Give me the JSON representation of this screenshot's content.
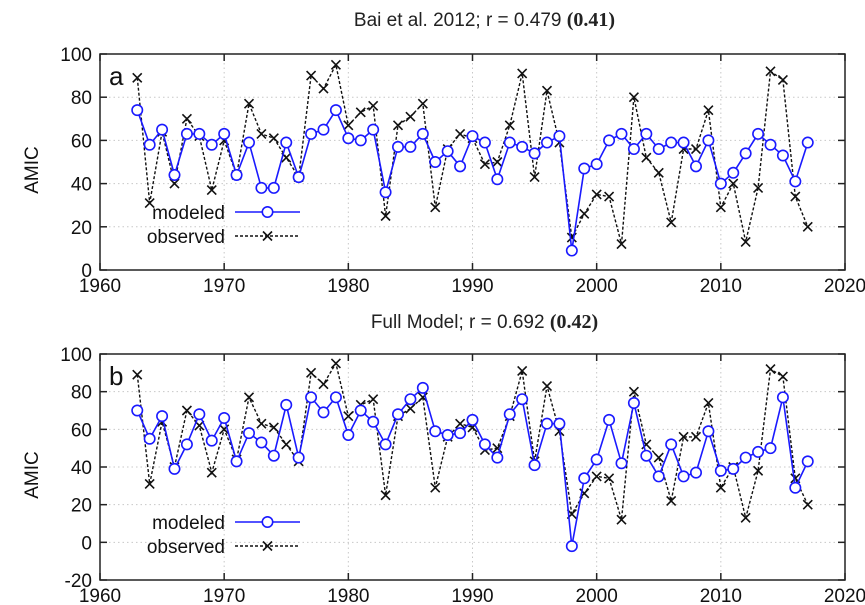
{
  "chart_data": [
    {
      "type": "line",
      "panel_label": "a",
      "title": "Bai et al. 2012; r = 0.479",
      "title_bold": "(0.41)",
      "xlabel": "",
      "ylabel": "AMIC",
      "xlim": [
        1960,
        2020
      ],
      "ylim": [
        0,
        100
      ],
      "xticks": [
        1960,
        1970,
        1980,
        1990,
        2000,
        2010,
        2020
      ],
      "yticks": [
        0,
        20,
        40,
        60,
        80,
        100
      ],
      "grid": true,
      "legend_position": "bottom-left",
      "series": [
        {
          "name": "modeled",
          "color": "#1a1aff",
          "marker": "circle",
          "line": "solid",
          "x": [
            1963,
            1964,
            1965,
            1966,
            1967,
            1968,
            1969,
            1970,
            1971,
            1972,
            1973,
            1974,
            1975,
            1976,
            1977,
            1978,
            1979,
            1980,
            1981,
            1982,
            1983,
            1984,
            1985,
            1986,
            1987,
            1988,
            1989,
            1990,
            1991,
            1992,
            1993,
            1994,
            1995,
            1996,
            1997,
            1998,
            1999,
            2000,
            2001,
            2002,
            2003,
            2004,
            2005,
            2006,
            2007,
            2008,
            2009,
            2010,
            2011,
            2012,
            2013,
            2014,
            2015,
            2016,
            2017
          ],
          "y": [
            74,
            58,
            65,
            44,
            63,
            63,
            58,
            63,
            44,
            59,
            38,
            38,
            59,
            43,
            63,
            65,
            74,
            61,
            60,
            65,
            36,
            57,
            57,
            63,
            50,
            55,
            48,
            62,
            59,
            42,
            59,
            57,
            54,
            59,
            62,
            9,
            47,
            49,
            60,
            63,
            56,
            63,
            56,
            59,
            59,
            48,
            60,
            40,
            45,
            54,
            63,
            58,
            53,
            41,
            59
          ]
        },
        {
          "name": "observed",
          "color": "#111111",
          "marker": "x",
          "line": "dashed",
          "x": [
            1963,
            1964,
            1965,
            1966,
            1967,
            1968,
            1969,
            1970,
            1971,
            1972,
            1973,
            1974,
            1975,
            1976,
            1977,
            1978,
            1979,
            1980,
            1981,
            1982,
            1983,
            1984,
            1985,
            1986,
            1987,
            1988,
            1989,
            1990,
            1991,
            1992,
            1993,
            1994,
            1995,
            1996,
            1997,
            1998,
            1999,
            2000,
            2001,
            2002,
            2003,
            2004,
            2005,
            2006,
            2007,
            2008,
            2009,
            2010,
            2011,
            2012,
            2013,
            2014,
            2015,
            2016,
            2017
          ],
          "y": [
            89,
            31,
            64,
            40,
            70,
            62,
            37,
            60,
            44,
            77,
            63,
            61,
            52,
            43,
            90,
            84,
            95,
            67,
            73,
            76,
            25,
            67,
            71,
            77,
            29,
            56,
            63,
            61,
            49,
            50,
            67,
            91,
            43,
            83,
            59,
            15,
            26,
            35,
            34,
            12,
            80,
            52,
            45,
            22,
            56,
            56,
            74,
            29,
            40,
            13,
            38,
            92,
            88,
            34,
            20
          ]
        }
      ]
    },
    {
      "type": "line",
      "panel_label": "b",
      "title": "Full Model; r = 0.692",
      "title_bold": "(0.42)",
      "xlabel": "",
      "ylabel": "AMIC",
      "xlim": [
        1960,
        2020
      ],
      "ylim": [
        -20,
        100
      ],
      "xticks": [
        1960,
        1970,
        1980,
        1990,
        2000,
        2010,
        2020
      ],
      "yticks": [
        -20,
        0,
        20,
        40,
        60,
        80,
        100
      ],
      "grid": true,
      "legend_position": "bottom-left",
      "series": [
        {
          "name": "modeled",
          "color": "#1a1aff",
          "marker": "circle",
          "line": "solid",
          "x": [
            1963,
            1964,
            1965,
            1966,
            1967,
            1968,
            1969,
            1970,
            1971,
            1972,
            1973,
            1974,
            1975,
            1976,
            1977,
            1978,
            1979,
            1980,
            1981,
            1982,
            1983,
            1984,
            1985,
            1986,
            1987,
            1988,
            1989,
            1990,
            1991,
            1992,
            1993,
            1994,
            1995,
            1996,
            1997,
            1998,
            1999,
            2000,
            2001,
            2002,
            2003,
            2004,
            2005,
            2006,
            2007,
            2008,
            2009,
            2010,
            2011,
            2012,
            2013,
            2014,
            2015,
            2016,
            2017
          ],
          "y": [
            70,
            55,
            67,
            39,
            52,
            68,
            54,
            66,
            43,
            58,
            53,
            46,
            73,
            45,
            77,
            69,
            77,
            57,
            70,
            64,
            52,
            68,
            76,
            82,
            59,
            57,
            58,
            65,
            52,
            45,
            68,
            76,
            41,
            63,
            63,
            -2,
            34,
            44,
            65,
            42,
            74,
            46,
            35,
            52,
            35,
            37,
            59,
            38,
            39,
            45,
            48,
            50,
            77,
            29,
            43
          ]
        },
        {
          "name": "observed",
          "color": "#111111",
          "marker": "x",
          "line": "dashed",
          "x": [
            1963,
            1964,
            1965,
            1966,
            1967,
            1968,
            1969,
            1970,
            1971,
            1972,
            1973,
            1974,
            1975,
            1976,
            1977,
            1978,
            1979,
            1980,
            1981,
            1982,
            1983,
            1984,
            1985,
            1986,
            1987,
            1988,
            1989,
            1990,
            1991,
            1992,
            1993,
            1994,
            1995,
            1996,
            1997,
            1998,
            1999,
            2000,
            2001,
            2002,
            2003,
            2004,
            2005,
            2006,
            2007,
            2008,
            2009,
            2010,
            2011,
            2012,
            2013,
            2014,
            2015,
            2016,
            2017
          ],
          "y": [
            89,
            31,
            64,
            40,
            70,
            62,
            37,
            60,
            44,
            77,
            63,
            61,
            52,
            43,
            90,
            84,
            95,
            67,
            73,
            76,
            25,
            67,
            71,
            77,
            29,
            56,
            63,
            61,
            49,
            50,
            67,
            91,
            43,
            83,
            59,
            15,
            26,
            35,
            34,
            12,
            80,
            52,
            45,
            22,
            56,
            56,
            74,
            29,
            40,
            13,
            38,
            92,
            88,
            34,
            20
          ]
        }
      ]
    }
  ]
}
